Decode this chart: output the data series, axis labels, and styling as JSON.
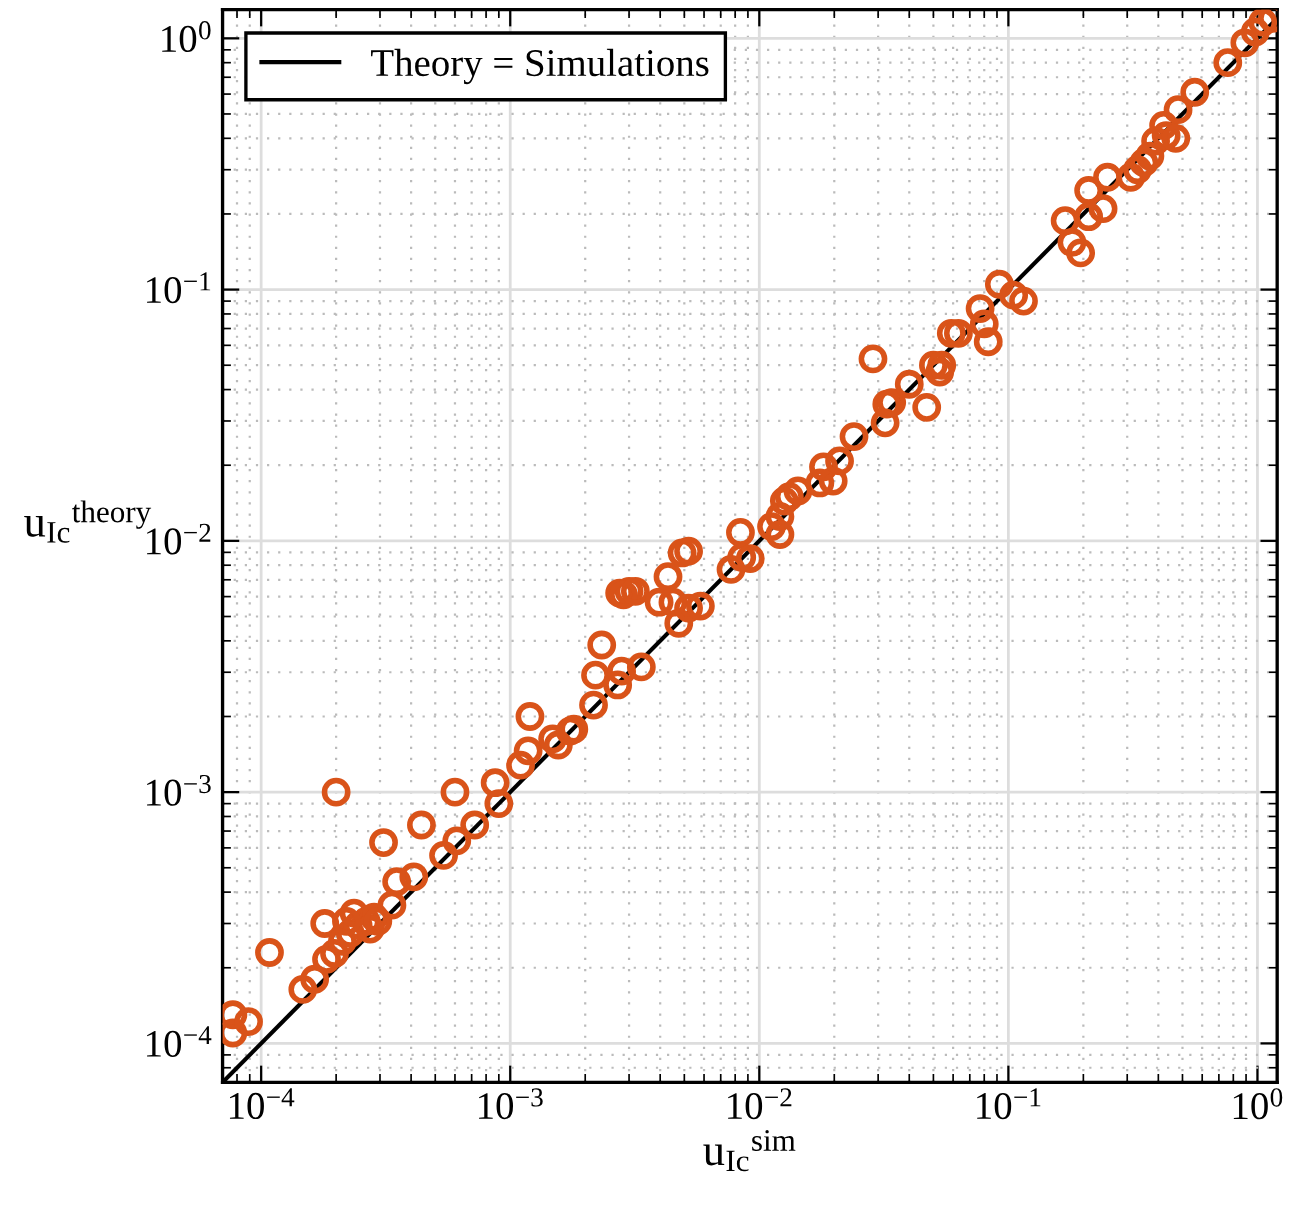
{
  "chart_data": {
    "type": "scatter",
    "xlabel": "u$_{Ic}$$^{sim}$",
    "ylabel": "u$_{Ic}$$^{theory}$",
    "log": "xy",
    "grid": true,
    "legend": "top left",
    "marker": "circle",
    "xlim": [
      7e-05,
      1.2
    ],
    "ylim": [
      7e-05,
      1.3
    ],
    "xticks": [
      {
        "value": 0.0001,
        "label": "10$^{−4}$"
      },
      {
        "value": 0.001,
        "label": "10$^{−3}$"
      },
      {
        "value": 0.01,
        "label": "10$^{−2}$"
      },
      {
        "value": 0.1,
        "label": "10$^{−1}$"
      },
      {
        "value": 1,
        "label": "10$^{0}$"
      }
    ],
    "yticks": [
      {
        "value": 0.0001,
        "label": "10$^{−4}$"
      },
      {
        "value": 0.001,
        "label": "10$^{−3}$"
      },
      {
        "value": 0.01,
        "label": "10$^{−2}$"
      },
      {
        "value": 0.1,
        "label": "10$^{−1}$"
      },
      {
        "value": 1,
        "label": "10$^{0}$"
      }
    ],
    "series": [
      {
        "type": "line",
        "name": "Theory = Simulations",
        "color": "#000000",
        "line_style": "solid",
        "marker": "none",
        "x": [
          7e-05,
          1.2
        ],
        "values": [
          7e-05,
          1.2
        ]
      },
      {
        "color": "#d95319",
        "x": [
          7.7e-05,
          7.7e-05,
          8.9e-05,
          0.000108,
          0.000147,
          0.000164,
          0.00018,
          0.0002,
          0.000183,
          0.000197,
          0.000212,
          0.000228,
          0.000245,
          0.000264,
          0.000284,
          0.000236,
          0.000274,
          0.000294,
          0.00022,
          0.00031,
          0.00035,
          0.000335,
          0.00041,
          0.00044,
          0.00054,
          0.00061,
          0.0006,
          0.00072,
          0.00087,
          0.0009,
          0.0011,
          0.00118,
          0.0012,
          0.00148,
          0.00156,
          0.00174,
          0.0018,
          0.00216,
          0.0022,
          0.0027,
          0.0028,
          0.00336,
          0.00233,
          0.00275,
          0.003,
          0.00285,
          0.00318,
          0.00396,
          0.0043,
          0.0045,
          0.00475,
          0.0049,
          0.0052,
          0.0052,
          0.0058,
          0.0077,
          0.0084,
          0.0085,
          0.0092,
          0.0112,
          0.0121,
          0.0121,
          0.0126,
          0.0132,
          0.0143,
          0.0175,
          0.0181,
          0.0198,
          0.021,
          0.024,
          0.032,
          0.0325,
          0.034,
          0.04,
          0.047,
          0.05,
          0.054,
          0.0286,
          0.059,
          0.053,
          0.063,
          0.077,
          0.08,
          0.083,
          0.092,
          0.105,
          0.115,
          0.169,
          0.18,
          0.195,
          0.21,
          0.21,
          0.24,
          0.25,
          0.31,
          0.33,
          0.35,
          0.37,
          0.39,
          0.42,
          0.43,
          0.47,
          0.48,
          0.56,
          0.76,
          0.89,
          0.98,
          1.05,
          1.15
        ],
        "values": [
          0.00013,
          0.00011,
          0.000122,
          0.00023,
          0.000164,
          0.00018,
          0.0003,
          0.001,
          0.000216,
          0.000228,
          0.000255,
          0.000274,
          0.000295,
          0.000306,
          0.000318,
          0.00033,
          0.000285,
          0.000306,
          0.000306,
          0.00063,
          0.00044,
          0.000355,
          0.00046,
          0.00074,
          0.00056,
          0.00064,
          0.001,
          0.00074,
          0.00109,
          0.0009,
          0.00128,
          0.00146,
          0.002,
          0.00163,
          0.00154,
          0.00175,
          0.00178,
          0.00222,
          0.00292,
          0.00267,
          0.00303,
          0.00315,
          0.00385,
          0.0062,
          0.0063,
          0.0061,
          0.0063,
          0.0057,
          0.0072,
          0.0057,
          0.0047,
          0.00895,
          0.0091,
          0.0054,
          0.0055,
          0.0077,
          0.0108,
          0.0086,
          0.0085,
          0.0114,
          0.0106,
          0.0125,
          0.0144,
          0.015,
          0.0158,
          0.017,
          0.0197,
          0.0173,
          0.0208,
          0.026,
          0.0295,
          0.035,
          0.0355,
          0.042,
          0.034,
          0.05,
          0.05,
          0.053,
          0.067,
          0.047,
          0.067,
          0.084,
          0.073,
          0.062,
          0.105,
          0.095,
          0.09,
          0.188,
          0.154,
          0.14,
          0.248,
          0.195,
          0.21,
          0.28,
          0.28,
          0.3,
          0.32,
          0.34,
          0.39,
          0.45,
          0.41,
          0.4,
          0.52,
          0.61,
          0.8,
          0.96,
          1.06,
          1.16,
          1.2
        ]
      }
    ]
  }
}
